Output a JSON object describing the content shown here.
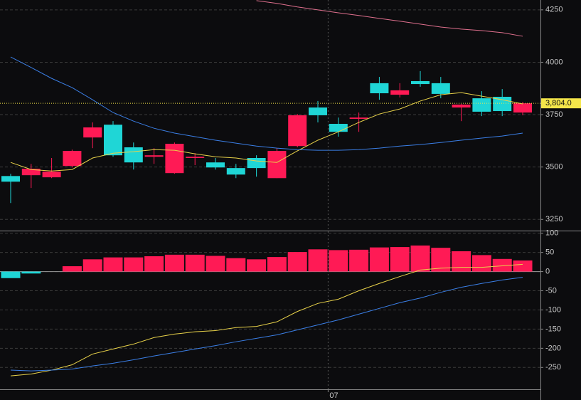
{
  "chart_data": [
    {
      "type": "candlestick",
      "open": [
        3457,
        3461,
        3451,
        3505,
        3641,
        3702,
        3594,
        3549,
        3471,
        3543,
        3522,
        3495,
        3543,
        3447,
        3600,
        3784,
        3706,
        3730,
        3900,
        3845,
        3910,
        3900,
        3784,
        3828,
        3835,
        3760
      ],
      "high": [
        3468,
        3515,
        3543,
        3583,
        3713,
        3719,
        3617,
        3590,
        3617,
        3566,
        3543,
        3515,
        3556,
        3590,
        3753,
        3815,
        3736,
        3760,
        3930,
        3900,
        3958,
        3930,
        3801,
        3862,
        3872,
        3811
      ],
      "low": [
        3328,
        3400,
        3447,
        3498,
        3590,
        3549,
        3488,
        3515,
        3468,
        3509,
        3488,
        3447,
        3454,
        3447,
        3594,
        3713,
        3645,
        3668,
        3821,
        3832,
        3883,
        3828,
        3719,
        3743,
        3743,
        3747
      ],
      "close": [
        3430,
        3492,
        3478,
        3577,
        3689,
        3556,
        3522,
        3556,
        3611,
        3549,
        3498,
        3464,
        3495,
        3577,
        3747,
        3747,
        3668,
        3736,
        3852,
        3866,
        3896,
        3849,
        3798,
        3764,
        3767,
        3804
      ],
      "up_color": "#ff1a55",
      "down_color": "#1fd6d6",
      "overlays": [
        {
          "color": "#e8d24a",
          "values": [
            3522,
            3488,
            3481,
            3488,
            3543,
            3566,
            3573,
            3583,
            3580,
            3563,
            3549,
            3543,
            3529,
            3522,
            3577,
            3628,
            3668,
            3713,
            3753,
            3777,
            3815,
            3845,
            3855,
            3838,
            3821,
            3801
          ]
        },
        {
          "color": "#3b7fe6",
          "values": [
            4025,
            3975,
            3923,
            3879,
            3821,
            3760,
            3719,
            3685,
            3662,
            3645,
            3628,
            3614,
            3600,
            3590,
            3583,
            3580,
            3580,
            3583,
            3590,
            3600,
            3607,
            3617,
            3628,
            3638,
            3648,
            3662
          ]
        },
        {
          "color": "#e0708e",
          "values": [
            null,
            null,
            null,
            null,
            null,
            null,
            null,
            null,
            null,
            null,
            null,
            null,
            4294,
            4281,
            4264,
            4250,
            4236,
            4223,
            4209,
            4196,
            4182,
            4168,
            4158,
            4151,
            4141,
            4124
          ]
        }
      ],
      "last_price": {
        "value": 3804.0,
        "label": "3,804.0"
      },
      "last_price_color": "#f5e64a",
      "ylim": [
        3200,
        4297
      ],
      "yticks": [
        3250,
        3500,
        3750,
        4000,
        4250
      ],
      "grid": true
    },
    {
      "type": "bar",
      "categories": [
        null,
        null,
        null,
        null,
        null,
        null,
        null,
        null,
        null,
        null,
        null,
        null,
        null,
        null,
        null,
        null,
        "07",
        null,
        null,
        null,
        null,
        null,
        null,
        null,
        null,
        null
      ],
      "values": [
        -17,
        -5,
        0,
        14,
        32,
        37,
        37,
        40,
        44,
        44,
        41,
        35,
        32,
        38,
        51,
        58,
        56,
        57,
        63,
        64,
        68,
        62,
        53,
        43,
        33,
        29
      ],
      "up_color": "#ff1a55",
      "down_color": "#1fd6d6",
      "overlays": [
        {
          "color": "#e8d24a",
          "values": [
            -272,
            -267,
            -257,
            -243,
            -215,
            -202,
            -189,
            -172,
            -163,
            -157,
            -154,
            -146,
            -143,
            -131,
            -104,
            -83,
            -72,
            -50,
            -31,
            -13,
            4,
            9,
            11,
            11,
            15,
            19
          ]
        },
        {
          "color": "#3b7fe6",
          "values": [
            -257,
            -259,
            -257,
            -254,
            -246,
            -239,
            -230,
            -220,
            -211,
            -202,
            -193,
            -183,
            -174,
            -165,
            -152,
            -139,
            -126,
            -111,
            -96,
            -81,
            -69,
            -54,
            -41,
            -31,
            -22,
            -15
          ]
        }
      ],
      "ylim": [
        -307,
        105
      ],
      "yticks": [
        -250,
        -200,
        -150,
        -100,
        -50,
        0,
        50,
        100
      ],
      "grid": true
    }
  ]
}
